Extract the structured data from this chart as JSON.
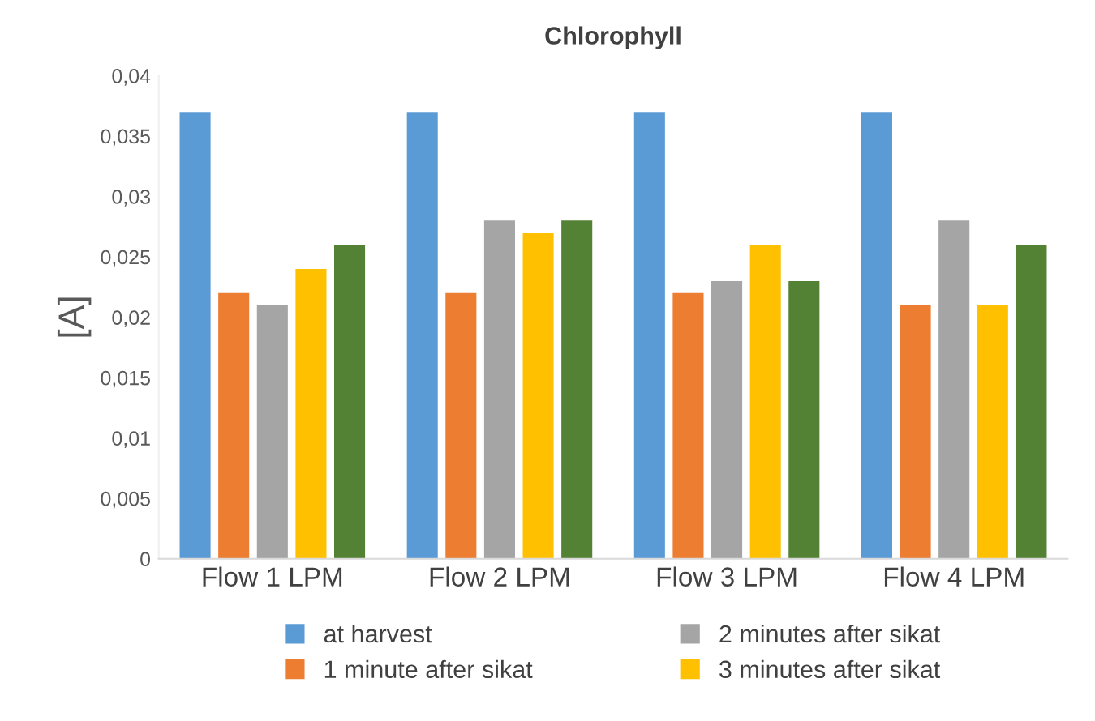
{
  "chart_data": {
    "type": "bar",
    "title": "Chlorophyll",
    "ylabel": "[A]",
    "categories": [
      "Flow 1 LPM",
      "Flow 2 LPM",
      "Flow 3 LPM",
      "Flow 4 LPM"
    ],
    "series": [
      {
        "name": "at harvest",
        "color": "#5b9bd5",
        "values": [
          0.037,
          0.037,
          0.037,
          0.037
        ]
      },
      {
        "name": "1 minute after sikat",
        "color": "#ed7d31",
        "values": [
          0.022,
          0.022,
          0.022,
          0.021
        ]
      },
      {
        "name": "2 minutes after sikat",
        "color": "#a5a5a5",
        "values": [
          0.021,
          0.028,
          0.023,
          0.028
        ]
      },
      {
        "name": "3 minutes after sikat",
        "color": "#ffc000",
        "values": [
          0.024,
          0.027,
          0.026,
          0.021
        ]
      },
      {
        "color": "#548235",
        "values": [
          0.026,
          0.028,
          0.023,
          0.026
        ]
      }
    ],
    "ylim": [
      0,
      0.04
    ],
    "yticks": [
      0,
      {
        "value": 0.005,
        "label": "0,005"
      },
      {
        "value": 0.01,
        "label": "0,01"
      },
      {
        "value": 0.015,
        "label": "0,015"
      },
      {
        "value": 0.02,
        "label": "0,02"
      },
      {
        "value": 0.025,
        "label": "0,025"
      },
      {
        "value": 0.03,
        "label": "0,03"
      },
      {
        "value": 0.035,
        "label": "0,035"
      },
      {
        "value": 0.04,
        "label": "0,04"
      }
    ],
    "grid": false,
    "legend": "bottom"
  }
}
